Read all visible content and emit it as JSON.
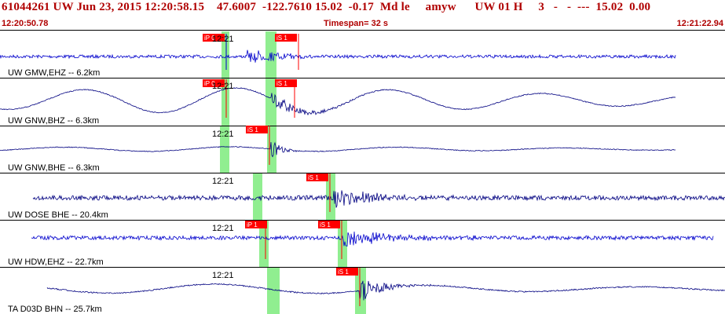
{
  "header": {
    "title": "61044261 UW Jun 23, 2015 12:20:58.15    47.6007  -122.7610 15.02  -0.17  Md le     amyw      UW 01 H     3   -   -  ---  15.02  0.00",
    "start_time": "12:20:50.78",
    "timespan": "Timespan=  32 s",
    "end_time": "12:21:22.94"
  },
  "colors": {
    "title": "#b00000",
    "pick": "#ff0000",
    "window": "#90ee90",
    "trace_blue": "#0000cc",
    "trace_navy": "#000080"
  },
  "panels": [
    {
      "label": "UW GMW,EHZ -- 6.2km",
      "tick": "12:21",
      "color": "#0000cc",
      "picks": [
        "iP 0",
        "iS 1"
      ]
    },
    {
      "label": "UW GNW,BHZ -- 6.3km",
      "tick": "12:21",
      "color": "#000080",
      "picks": [
        "iP 0",
        "iS 1"
      ]
    },
    {
      "label": "UW GNW,BHE -- 6.3km",
      "tick": "12:21",
      "color": "#000080",
      "picks": [
        "iS 1"
      ]
    },
    {
      "label": "UW DOSE BHE -- 20.4km",
      "tick": "12:21",
      "color": "#000080",
      "picks": [
        "iS 1"
      ]
    },
    {
      "label": "UW HDW,EHZ -- 22.7km",
      "tick": "12:21",
      "color": "#0000cc",
      "picks": [
        "iP 1",
        "iS 1"
      ]
    },
    {
      "label": "TA D03D BHN -- 25.7km",
      "tick": "12:21",
      "color": "#000080",
      "picks": [
        "iS 1"
      ]
    }
  ]
}
